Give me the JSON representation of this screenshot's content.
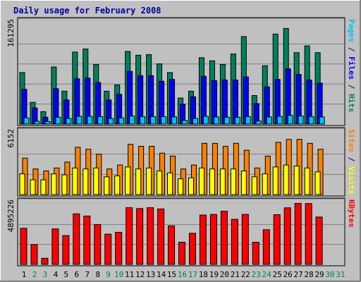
{
  "title": "Daily usage for February 2008",
  "colors": {
    "background": "#c0c0c0",
    "title": "#0000a0",
    "hits": "#00805c",
    "files": "#0000ff",
    "pages": "#00c0ff",
    "visits": "#ffff00",
    "sites": "#ff8000",
    "kbytes": "#ff0000",
    "weekday_tick": "#000000",
    "weekend_tick": "#00805c"
  },
  "chart_data": [
    {
      "type": "bar",
      "panel": "hits-files-pages",
      "ymax_label": "161295",
      "ylim": [
        0,
        161295
      ],
      "right_label_parts": [
        {
          "text": "Pages",
          "color": "#00c0ff"
        },
        {
          "text": " / ",
          "color": "#000080"
        },
        {
          "text": "Files",
          "color": "#0000ff"
        },
        {
          "text": " / ",
          "color": "#000080"
        },
        {
          "text": "Hits",
          "color": "#00805c"
        }
      ],
      "categories": [
        "1",
        "2",
        "3",
        "4",
        "5",
        "6",
        "7",
        "8",
        "9",
        "10",
        "11",
        "12",
        "13",
        "14",
        "15",
        "16",
        "17",
        "18",
        "19",
        "20",
        "21",
        "22",
        "23",
        "24",
        "25",
        "26",
        "27",
        "28",
        "29",
        "30",
        "31"
      ],
      "series": [
        {
          "name": "Hits",
          "color": "#00805c",
          "values": [
            83000,
            35000,
            20000,
            92000,
            53000,
            116000,
            121000,
            96000,
            53000,
            63000,
            117000,
            111000,
            112000,
            97000,
            83000,
            42000,
            53000,
            107000,
            102000,
            96000,
            113000,
            141000,
            46000,
            94000,
            145000,
            154000,
            115000,
            126000,
            115000,
            0,
            0
          ]
        },
        {
          "name": "Files",
          "color": "#0000ff",
          "values": [
            56000,
            26000,
            11000,
            57000,
            39000,
            73000,
            74000,
            67000,
            39000,
            48000,
            85000,
            78000,
            78000,
            69000,
            72000,
            32000,
            44000,
            77000,
            70000,
            71000,
            71000,
            76000,
            33000,
            60000,
            72000,
            89000,
            80000,
            71000,
            66000,
            0,
            0
          ]
        },
        {
          "name": "Pages",
          "color": "#00c0ff",
          "values": [
            10000,
            4500,
            4000,
            11000,
            9000,
            12500,
            12500,
            12000,
            9000,
            10000,
            13000,
            12000,
            12000,
            12000,
            11500,
            6000,
            9000,
            12500,
            11500,
            11000,
            11000,
            12000,
            5000,
            11500,
            12500,
            14000,
            13000,
            12000,
            11500,
            0,
            0
          ]
        }
      ]
    },
    {
      "type": "bar",
      "panel": "sites-visits",
      "ymax_label": "6152",
      "ylim": [
        0,
        6152
      ],
      "right_label_parts": [
        {
          "text": "Sites",
          "color": "#ff8000"
        },
        {
          "text": " / ",
          "color": "#000080"
        },
        {
          "text": "Visits",
          "color": "#ffff00"
        }
      ],
      "categories": [
        "1",
        "2",
        "3",
        "4",
        "5",
        "6",
        "7",
        "8",
        "9",
        "10",
        "11",
        "12",
        "13",
        "14",
        "15",
        "16",
        "17",
        "18",
        "19",
        "20",
        "21",
        "22",
        "23",
        "24",
        "25",
        "26",
        "27",
        "28",
        "29",
        "30",
        "31"
      ],
      "series": [
        {
          "name": "Sites",
          "color": "#ff8000",
          "values": [
            3700,
            2600,
            2400,
            2700,
            3300,
            4800,
            4600,
            4100,
            2600,
            3000,
            5100,
            4900,
            4900,
            4200,
            3900,
            2600,
            3000,
            5200,
            5200,
            4900,
            5200,
            4500,
            2700,
            3900,
            5300,
            5600,
            5600,
            5200,
            4600,
            0,
            0
          ]
        },
        {
          "name": "Visits",
          "color": "#ffff00",
          "values": [
            2100,
            1500,
            1500,
            2100,
            2000,
            2700,
            2600,
            2700,
            1800,
            1900,
            2800,
            2600,
            2700,
            2400,
            2200,
            1600,
            1700,
            2700,
            2600,
            2600,
            2600,
            2400,
            1800,
            2100,
            2800,
            3000,
            2900,
            2700,
            2300,
            0,
            0
          ]
        }
      ]
    },
    {
      "type": "bar",
      "panel": "kbytes",
      "ymax_label": "4895226",
      "ylim": [
        0,
        4895226
      ],
      "right_label_parts": [
        {
          "text": "KBytes",
          "color": "#ff0000"
        }
      ],
      "categories": [
        "1",
        "2",
        "3",
        "4",
        "5",
        "6",
        "7",
        "8",
        "9",
        "10",
        "11",
        "12",
        "13",
        "14",
        "15",
        "16",
        "17",
        "18",
        "19",
        "20",
        "21",
        "22",
        "23",
        "24",
        "25",
        "26",
        "27",
        "28",
        "29",
        "30",
        "31"
      ],
      "series": [
        {
          "name": "KBytes",
          "color": "#ff0000",
          "values": [
            2950000,
            1620000,
            500000,
            2900000,
            2350000,
            4130000,
            3950000,
            3250000,
            2470000,
            2620000,
            4630000,
            4560000,
            4630000,
            4530000,
            3150000,
            1810000,
            2540000,
            4030000,
            4080000,
            4340000,
            3680000,
            4080000,
            1810000,
            2830000,
            4060000,
            4620000,
            4980000,
            4970000,
            3870000,
            0,
            0
          ]
        }
      ]
    }
  ],
  "x_axis": {
    "labels": [
      "1",
      "2",
      "3",
      "4",
      "5",
      "6",
      "7",
      "8",
      "9",
      "10",
      "11",
      "12",
      "13",
      "14",
      "15",
      "16",
      "17",
      "18",
      "19",
      "20",
      "21",
      "22",
      "23",
      "24",
      "25",
      "26",
      "27",
      "28",
      "29",
      "30",
      "31"
    ],
    "weekend": [
      false,
      true,
      true,
      false,
      false,
      false,
      false,
      false,
      true,
      true,
      false,
      false,
      false,
      false,
      false,
      true,
      true,
      false,
      false,
      false,
      false,
      false,
      true,
      true,
      false,
      false,
      false,
      false,
      false,
      true,
      true
    ]
  }
}
